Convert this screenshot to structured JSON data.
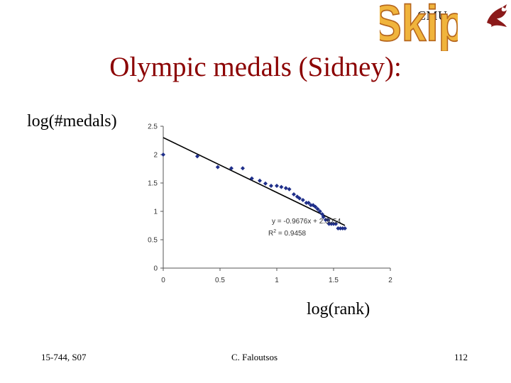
{
  "header": {
    "logo_text": "CMU",
    "skip_label": "Skip",
    "title": "Olympic medals (Sidney):"
  },
  "axis_titles": {
    "y": "log(#medals)",
    "x": "log(rank)"
  },
  "footer": {
    "course": "15-744, S07",
    "author": "C. Faloutsos",
    "page": "112"
  },
  "colors": {
    "title": "#8b0000",
    "points": "#1f2f8a",
    "skip_fill": "#f0b43c",
    "skip_stroke": "#b5651d"
  },
  "chart_data": {
    "type": "scatter",
    "title": "",
    "xlabel": "log(rank)",
    "ylabel": "log(#medals)",
    "xlim": [
      0,
      2
    ],
    "ylim": [
      0,
      2.5
    ],
    "xticks": [
      "0",
      "0.5",
      "1",
      "1.5",
      "2"
    ],
    "yticks": [
      "0",
      "0.5",
      "1",
      "1.5",
      "2",
      "2.5"
    ],
    "grid": false,
    "points": {
      "x": [
        0.0,
        0.3,
        0.48,
        0.6,
        0.7,
        0.78,
        0.85,
        0.9,
        0.95,
        1.0,
        1.04,
        1.08,
        1.11,
        1.15,
        1.18,
        1.2,
        1.23,
        1.26,
        1.28,
        1.3,
        1.32,
        1.34,
        1.36,
        1.38,
        1.4,
        1.41,
        1.43,
        1.45,
        1.46,
        1.48,
        1.5,
        1.52,
        1.54,
        1.56,
        1.58,
        1.6
      ],
      "y": [
        2.0,
        1.97,
        1.78,
        1.76,
        1.76,
        1.58,
        1.54,
        1.49,
        1.45,
        1.45,
        1.43,
        1.41,
        1.39,
        1.3,
        1.26,
        1.23,
        1.2,
        1.15,
        1.15,
        1.11,
        1.11,
        1.08,
        1.04,
        1.0,
        0.95,
        0.9,
        0.85,
        0.85,
        0.78,
        0.78,
        0.78,
        0.78,
        0.7,
        0.7,
        0.7,
        0.7
      ]
    },
    "trendline": {
      "slope": -0.9676,
      "intercept": 2.3,
      "x_range": [
        0,
        1.6
      ]
    },
    "annotations": {
      "equation": "y = -0.9676x + 2.3054",
      "r2_prefix": "R",
      "r2_sup": "2",
      "r2_value": " = 0.9458"
    }
  }
}
